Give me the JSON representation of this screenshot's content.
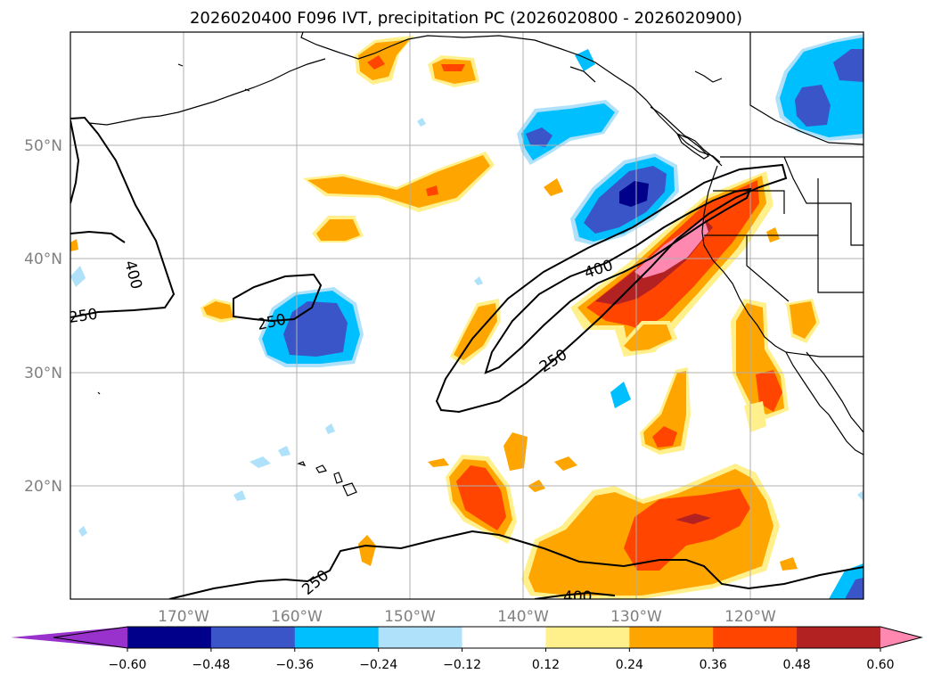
{
  "title": "2026020400 F096 IVT, precipitation PC (2026020800 - 2026020900)",
  "map": {
    "lon_range": [
      -180,
      -110
    ],
    "lat_range": [
      10,
      60
    ],
    "lat_grid": [
      20,
      30,
      40,
      50
    ],
    "lon_grid": [
      -170,
      -160,
      -150,
      -140,
      -130,
      -120
    ],
    "lat_labels": [
      "20°N",
      "30°N",
      "40°N",
      "50°N"
    ],
    "lon_labels": [
      "170°W",
      "160°W",
      "150°W",
      "140°W",
      "130°W",
      "120°W"
    ],
    "ivt_contour_labels": [
      "400",
      "250",
      "250",
      "400",
      "250",
      "250",
      "400"
    ]
  },
  "colorbar": {
    "ticks": [
      "−0.60",
      "−0.48",
      "−0.36",
      "−0.24",
      "−0.12",
      "0.12",
      "0.24",
      "0.36",
      "0.48",
      "0.60"
    ],
    "bins": [
      {
        "name": "lt-0.60",
        "color": "#9932cc"
      },
      {
        "name": "-0.60",
        "color": "#00008b"
      },
      {
        "name": "-0.48",
        "color": "#3a55c7"
      },
      {
        "name": "-0.36",
        "color": "#00bfff"
      },
      {
        "name": "-0.24",
        "color": "#afe2fa"
      },
      {
        "name": "-0.12",
        "color": "#ffffff"
      },
      {
        "name": "0.12",
        "color": "#fff08c"
      },
      {
        "name": "0.24",
        "color": "#ffa500"
      },
      {
        "name": "0.36",
        "color": "#ff4500"
      },
      {
        "name": "0.48",
        "color": "#b22222"
      },
      {
        "name": "gt-0.60",
        "color": "#ff88b0"
      }
    ]
  }
}
